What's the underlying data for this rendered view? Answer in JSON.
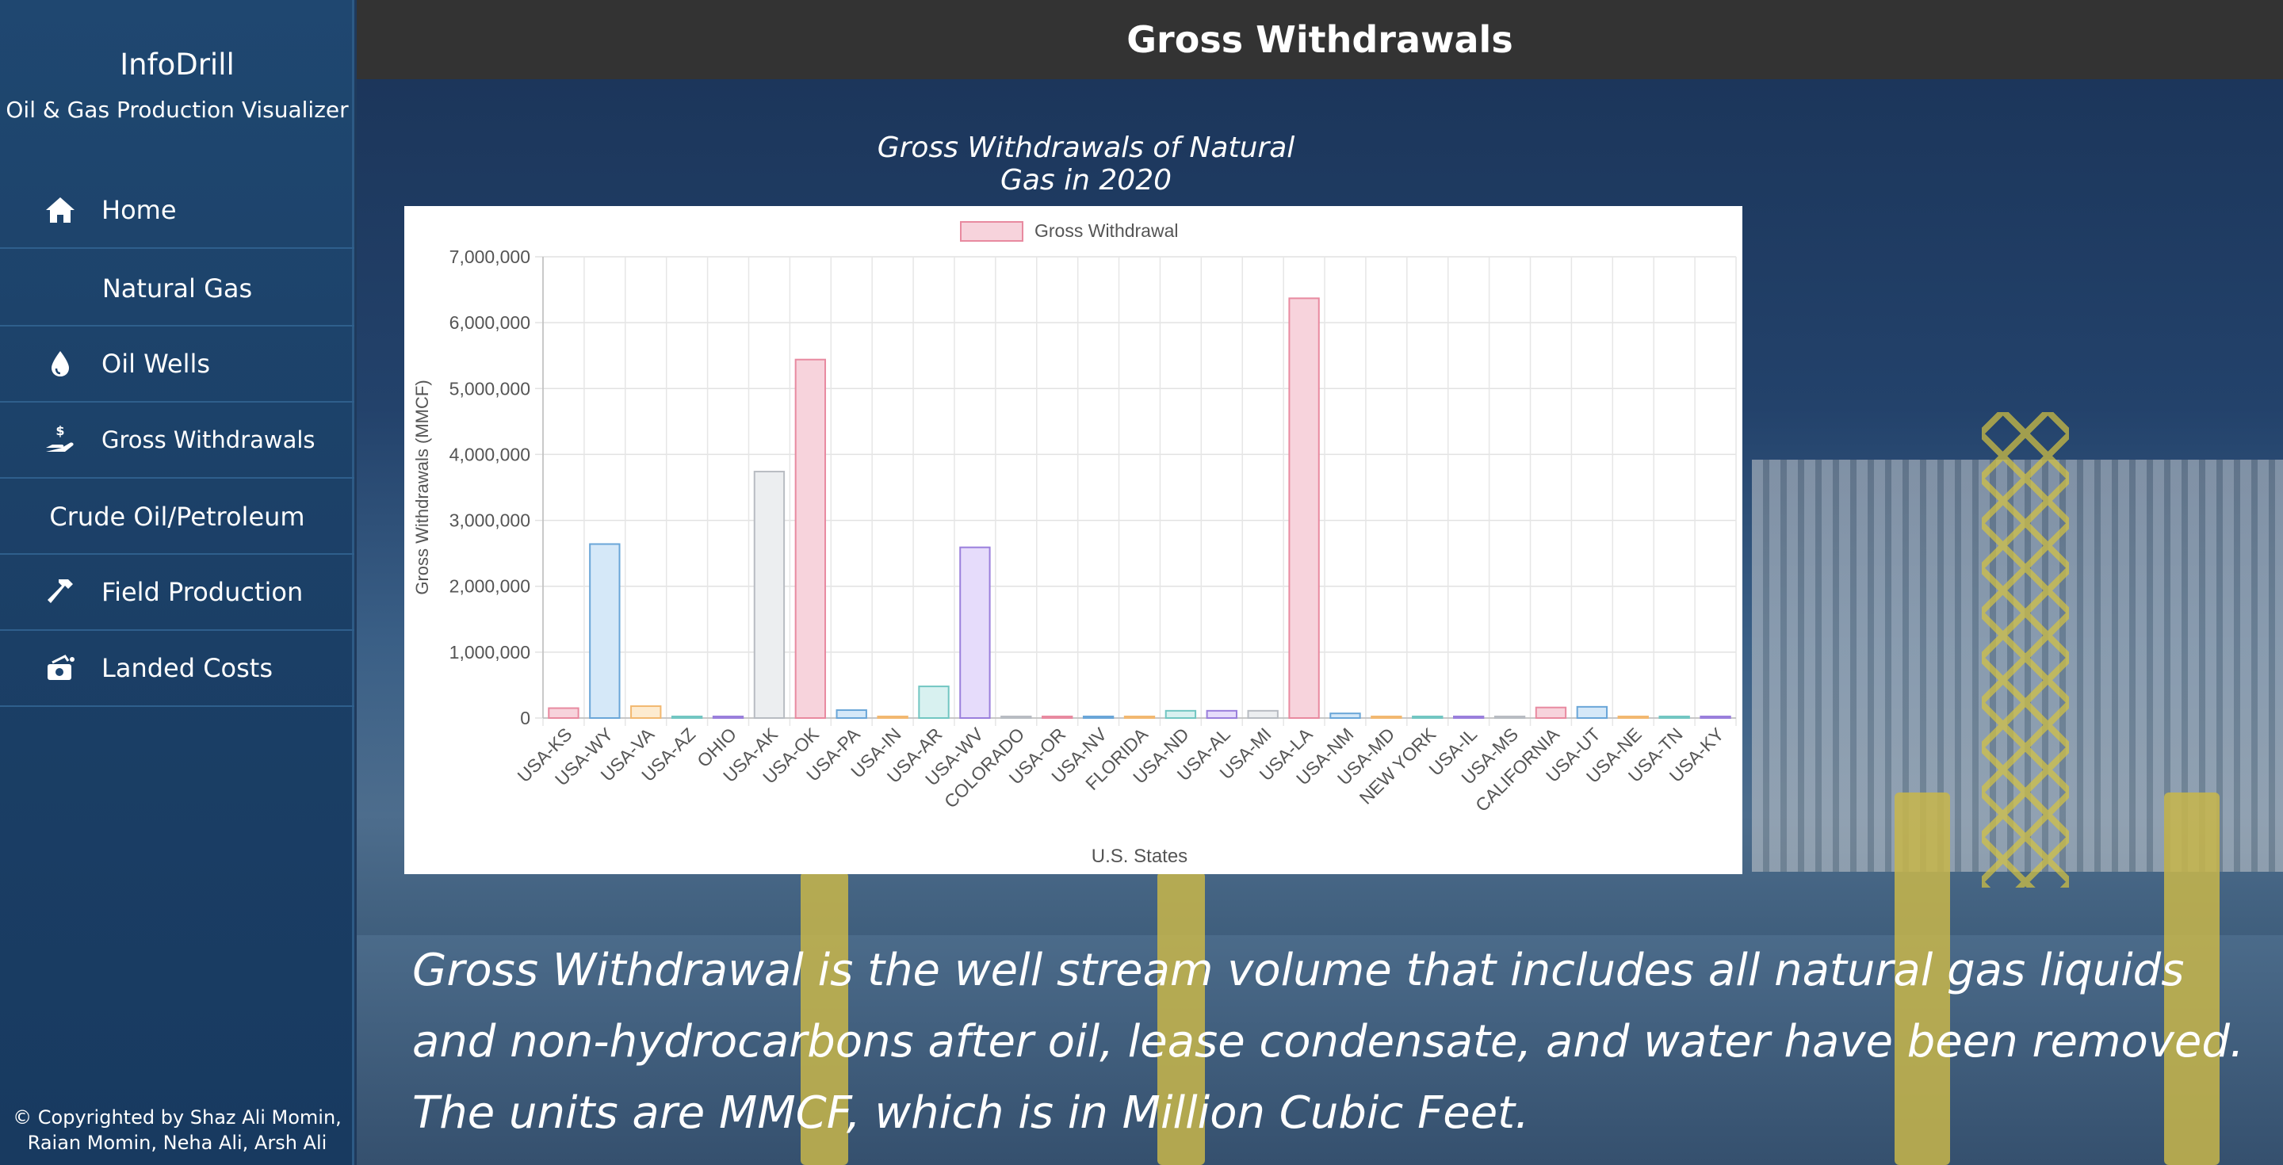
{
  "sidebar": {
    "brand_title": "InfoDrill",
    "brand_subtitle": "Oil & Gas Production Visualizer",
    "items": [
      {
        "label": "Home",
        "icon": "home-icon"
      },
      {
        "label": "Natural Gas",
        "type": "section"
      },
      {
        "label": "Oil Wells",
        "icon": "droplet-icon"
      },
      {
        "label": "Gross Withdrawals",
        "icon": "hand-dollar-icon"
      },
      {
        "label": "Crude Oil/Petroleum",
        "type": "section"
      },
      {
        "label": "Field Production",
        "icon": "hammer-icon"
      },
      {
        "label": "Landed Costs",
        "icon": "cash-icon"
      }
    ],
    "copyright": "© Copyrighted by Shaz Ali Momin, Raian Momin, Neha Ali, Arsh Ali"
  },
  "header": {
    "title": "Gross Withdrawals"
  },
  "chart_heading": "Gross Withdrawals of Natural Gas in 2020",
  "description": "Gross Withdrawal is the well stream volume that includes all natural gas liquids and non-hydrocarbons after oil, lease condensate, and water have been removed. The units are MMCF, which is in Million Cubic Feet.",
  "chart_data": {
    "type": "bar",
    "legend": "Gross Withdrawal",
    "legend_position": "top",
    "xlabel": "U.S. States",
    "ylabel": "Gross Withdrawals (MMCF)",
    "ylim": [
      0,
      7000000
    ],
    "yticks": [
      "0",
      "1,000,000",
      "2,000,000",
      "3,000,000",
      "4,000,000",
      "5,000,000",
      "6,000,000",
      "7,000,000"
    ],
    "grid": true,
    "categories": [
      "USA-KS",
      "USA-WY",
      "USA-VA",
      "USA-AZ",
      "OHIO",
      "USA-AK",
      "USA-OK",
      "USA-PA",
      "USA-IN",
      "USA-AR",
      "USA-WV",
      "COLORADO",
      "USA-OR",
      "USA-NV",
      "FLORIDA",
      "USA-ND",
      "USA-AL",
      "USA-MI",
      "USA-LA",
      "USA-NM",
      "USA-MD",
      "NEW YORK",
      "USA-IL",
      "USA-MS",
      "CALIFORNIA",
      "USA-UT",
      "USA-NE",
      "USA-TN",
      "USA-KY"
    ],
    "values": [
      150000,
      2640000,
      180000,
      10000,
      5000,
      3740000,
      5440000,
      120000,
      5000,
      480000,
      2590000,
      5000,
      10000,
      5000,
      10000,
      110000,
      110000,
      110000,
      6370000,
      70000,
      5000,
      5000,
      10000,
      15000,
      160000,
      170000,
      5000,
      5000,
      5000
    ],
    "bar_colors": [
      [
        "#f7d3dc",
        "#e88aa0"
      ],
      [
        "#d5e8f8",
        "#6aa6d8"
      ],
      [
        "#fdebd0",
        "#f2b870"
      ],
      [
        "#d8f1f0",
        "#72c6c2"
      ],
      [
        "#e6dcfb",
        "#9a7fdc"
      ],
      [
        "#eceef0",
        "#b8bcc2"
      ]
    ]
  }
}
